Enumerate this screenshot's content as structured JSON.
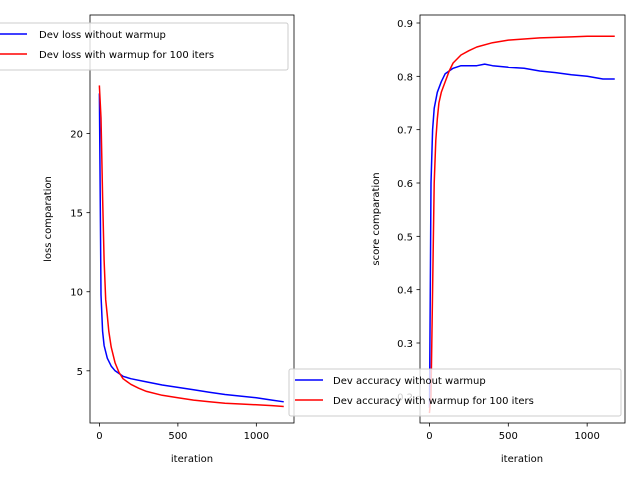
{
  "chart_data": [
    {
      "type": "line",
      "title": "",
      "xlabel": "iteration",
      "ylabel": "loss comparation",
      "xlim": [
        -60,
        1240
      ],
      "ylim": [
        1.7,
        27.5
      ],
      "xticks": [
        0,
        500,
        1000
      ],
      "yticks": [
        5,
        10,
        15,
        20
      ],
      "grid": false,
      "legend_position": "upper-left",
      "series": [
        {
          "name": "Dev loss without warmup",
          "color": "#0000ff",
          "x": [
            0,
            10,
            20,
            30,
            50,
            75,
            100,
            150,
            200,
            300,
            400,
            500,
            600,
            700,
            800,
            900,
            1000,
            1100,
            1170
          ],
          "y": [
            22.5,
            9.8,
            7.5,
            6.6,
            5.8,
            5.3,
            5.0,
            4.65,
            4.5,
            4.3,
            4.1,
            3.95,
            3.8,
            3.65,
            3.5,
            3.4,
            3.3,
            3.15,
            3.05
          ]
        },
        {
          "name": "Dev loss with warmup for 100 iters",
          "color": "#ff0000",
          "x": [
            0,
            10,
            20,
            30,
            40,
            50,
            60,
            75,
            100,
            125,
            150,
            200,
            250,
            300,
            400,
            500,
            600,
            700,
            800,
            900,
            1000,
            1100,
            1170
          ],
          "y": [
            23.0,
            21.0,
            16.0,
            12.0,
            9.5,
            8.5,
            7.5,
            6.5,
            5.5,
            4.9,
            4.5,
            4.15,
            3.9,
            3.7,
            3.45,
            3.3,
            3.15,
            3.05,
            2.95,
            2.9,
            2.85,
            2.8,
            2.75
          ]
        }
      ]
    },
    {
      "type": "line",
      "title": "",
      "xlabel": "iteration",
      "ylabel": "score comparation",
      "xlim": [
        -60,
        1240
      ],
      "ylim": [
        0.15,
        0.915
      ],
      "xticks": [
        0,
        500,
        1000
      ],
      "yticks": [
        0.3,
        0.4,
        0.5,
        0.6,
        0.7,
        0.8,
        0.9
      ],
      "yticks_hidden_by_legend": [
        0.2
      ],
      "grid": false,
      "legend_position": "lower-center",
      "series": [
        {
          "name": "Dev accuracy without warmup",
          "color": "#0000ff",
          "x": [
            0,
            10,
            20,
            30,
            50,
            75,
            100,
            150,
            200,
            250,
            300,
            350,
            400,
            500,
            600,
            700,
            800,
            900,
            1000,
            1100,
            1170
          ],
          "y": [
            0.18,
            0.6,
            0.7,
            0.74,
            0.77,
            0.79,
            0.805,
            0.815,
            0.82,
            0.82,
            0.82,
            0.823,
            0.82,
            0.817,
            0.815,
            0.81,
            0.807,
            0.803,
            0.8,
            0.795,
            0.795
          ]
        },
        {
          "name": "Dev accuracy with warmup for 100 iters",
          "color": "#ff0000",
          "x": [
            0,
            10,
            20,
            30,
            40,
            50,
            60,
            75,
            100,
            125,
            150,
            200,
            250,
            300,
            400,
            500,
            600,
            700,
            800,
            900,
            1000,
            1100,
            1170
          ],
          "y": [
            0.17,
            0.2,
            0.4,
            0.6,
            0.68,
            0.72,
            0.75,
            0.77,
            0.79,
            0.81,
            0.825,
            0.84,
            0.848,
            0.855,
            0.863,
            0.868,
            0.87,
            0.872,
            0.873,
            0.874,
            0.875,
            0.875,
            0.875
          ]
        }
      ]
    }
  ]
}
